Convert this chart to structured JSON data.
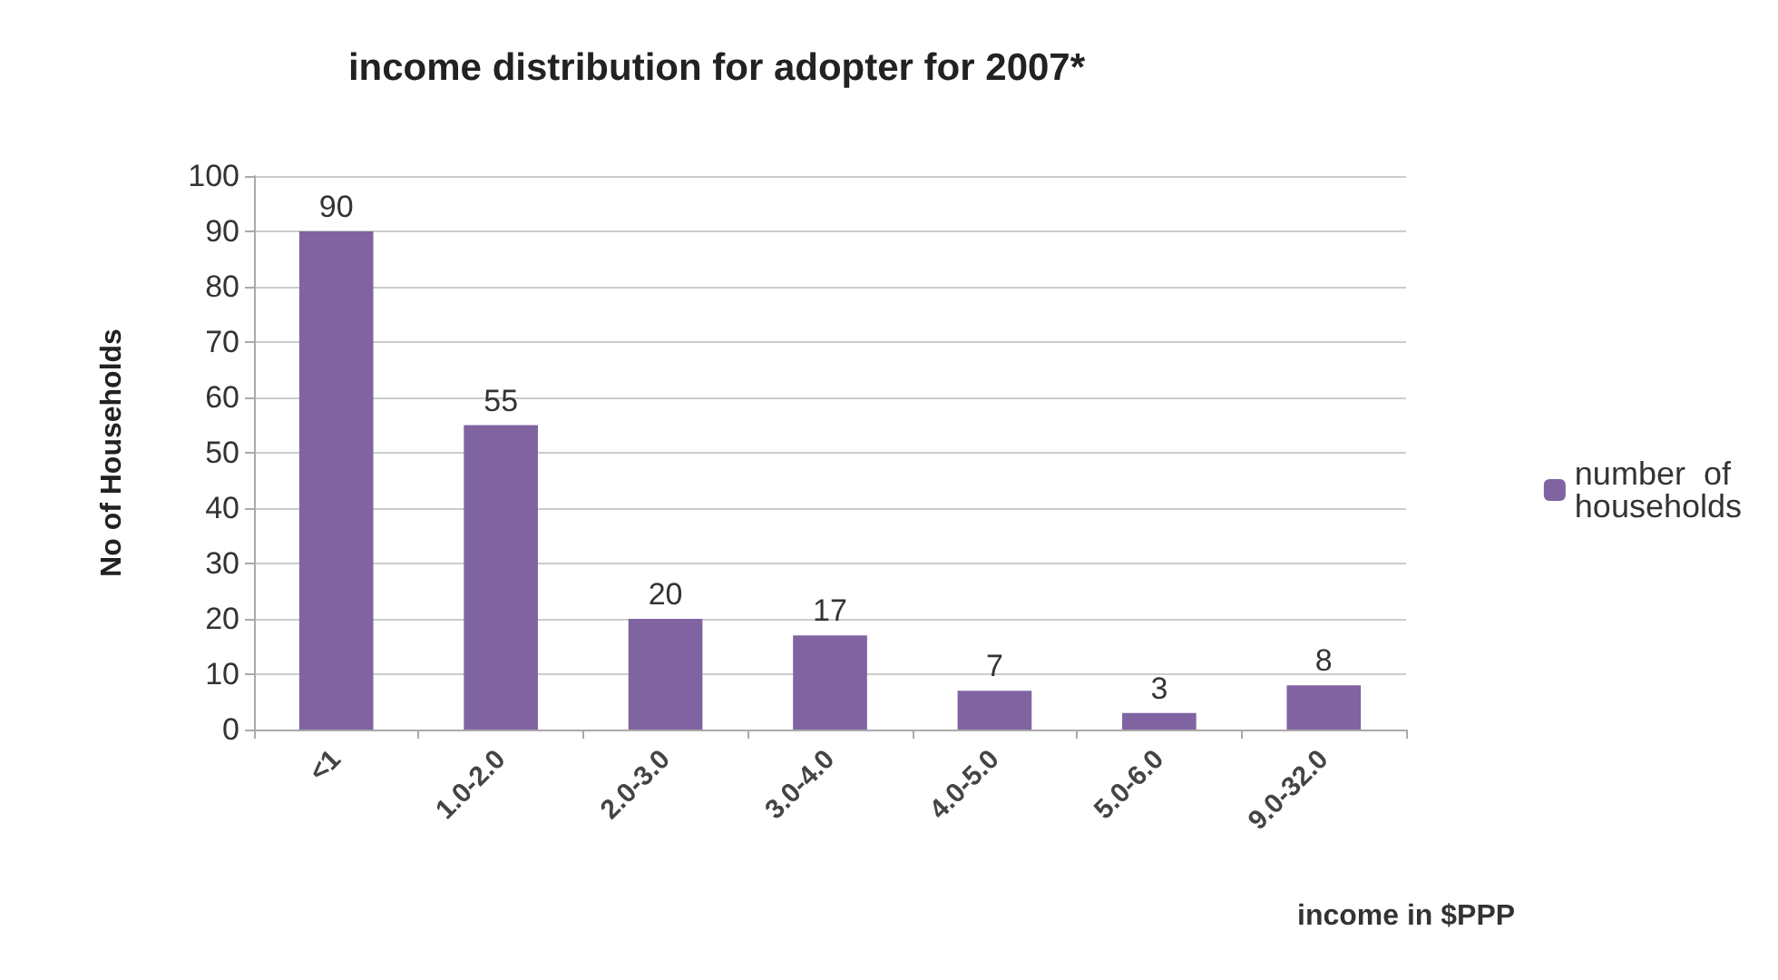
{
  "chart_data": {
    "type": "bar",
    "title": "income distribution for adopter for 2007*",
    "xlabel": "income in $PPP",
    "ylabel": "No of Households",
    "categories": [
      "<1",
      "1.0-2.0",
      "2.0-3.0",
      "3.0-4.0",
      "4.0-5.0",
      "5.0-6.0",
      "9.0-32.0"
    ],
    "series": [
      {
        "name": "number  of households",
        "color": "#8064a2",
        "values": [
          90,
          55,
          20,
          17,
          7,
          3,
          8
        ]
      }
    ],
    "ylim": [
      0,
      100
    ],
    "yticks": [
      0,
      10,
      20,
      30,
      40,
      50,
      60,
      70,
      80,
      90,
      100
    ],
    "grid": "y",
    "legend": "right",
    "data_labels": true
  }
}
